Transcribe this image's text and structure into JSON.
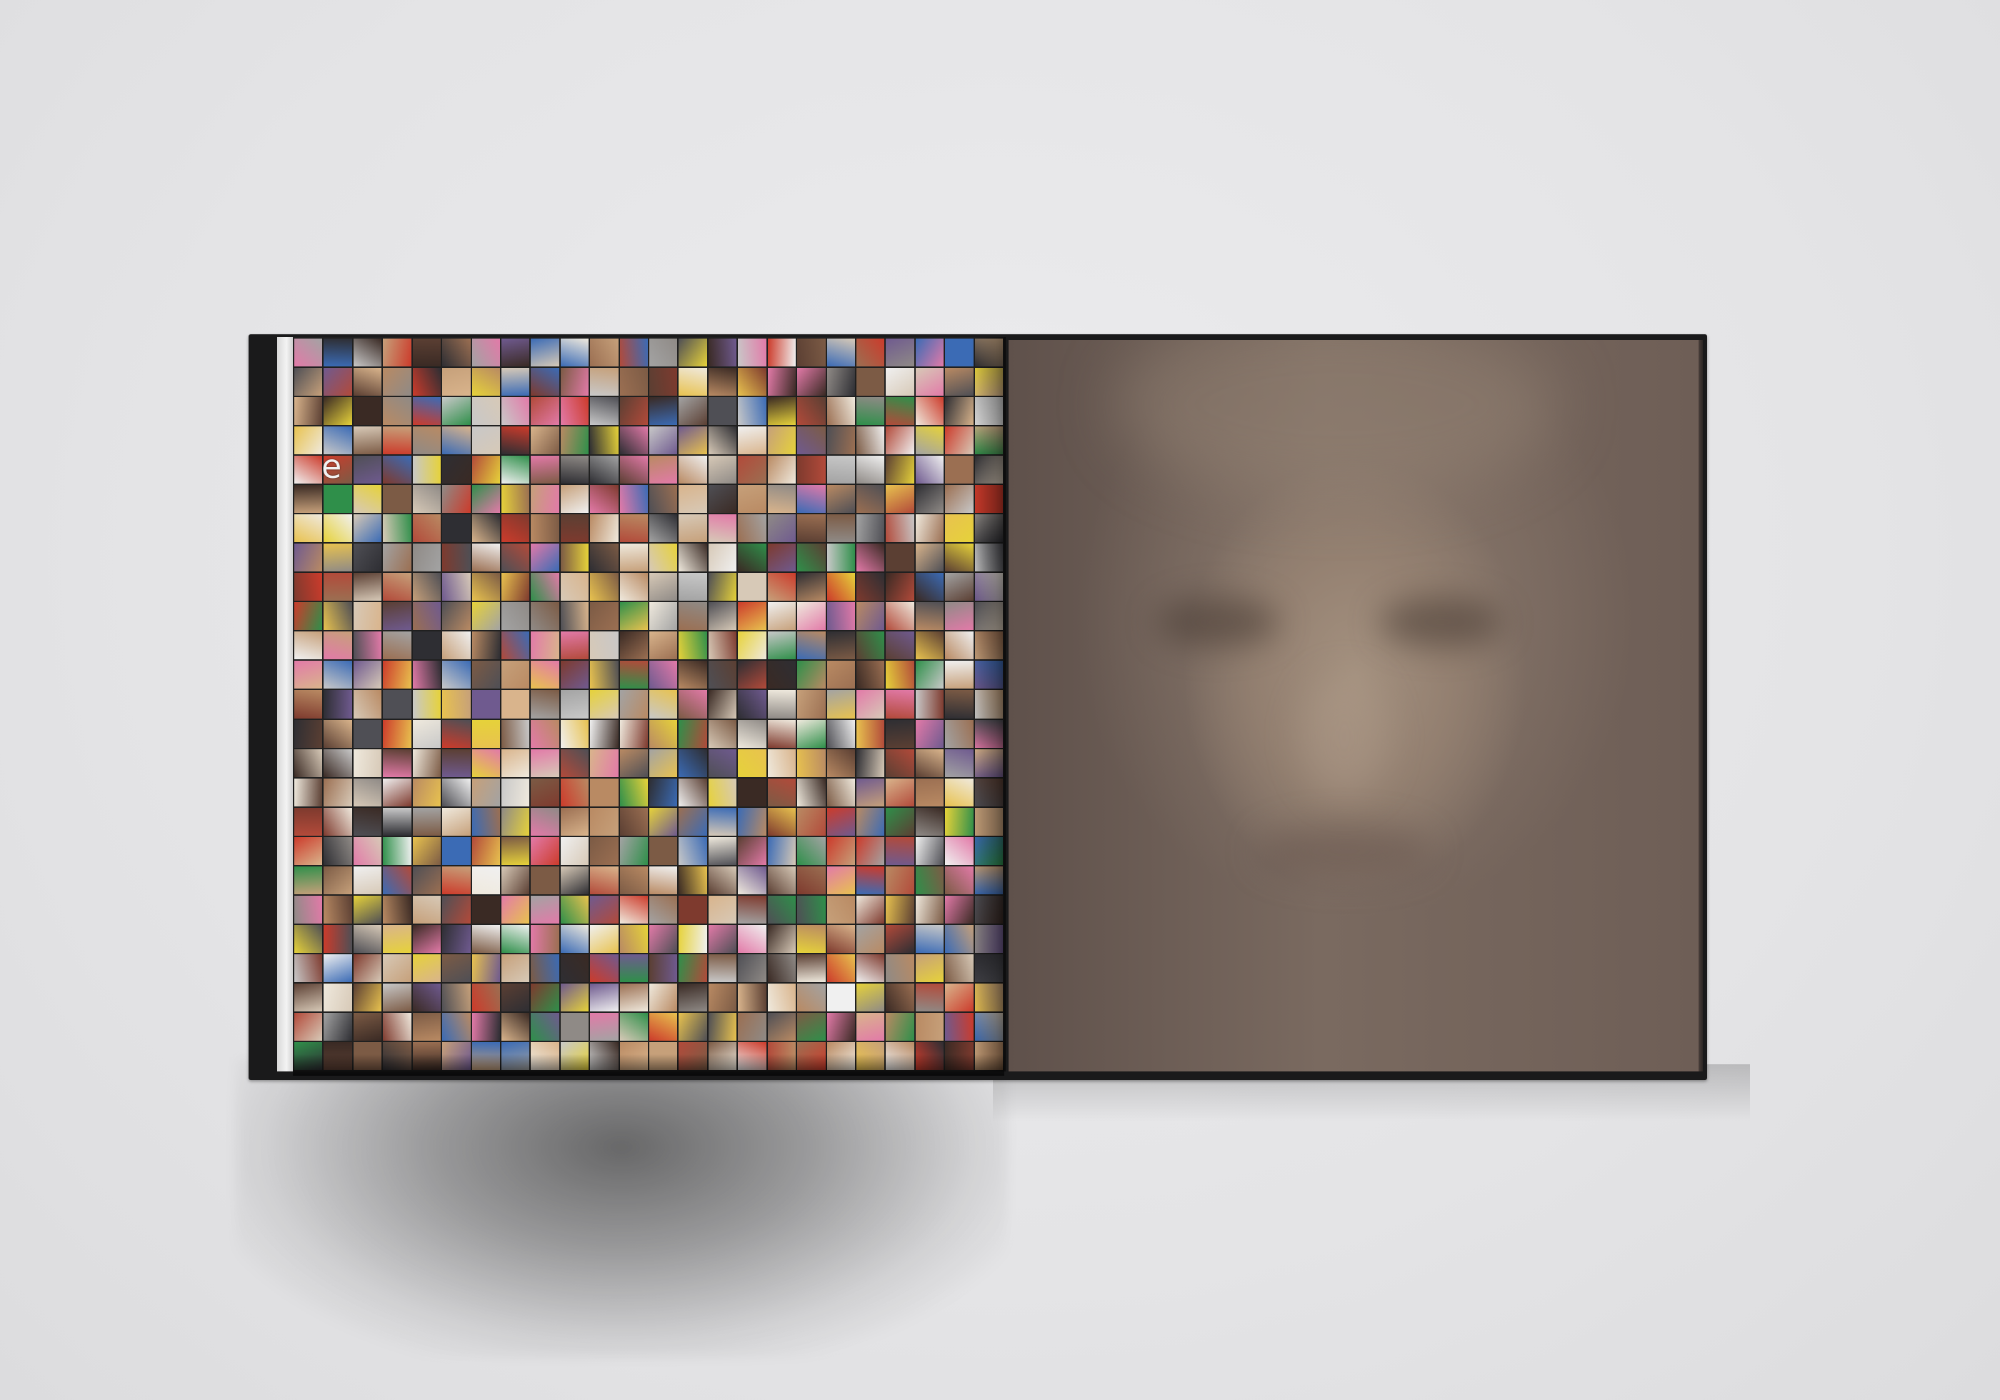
{
  "scene": {
    "left_page": {
      "mosaic_letter": "e",
      "mosaic_columns": 24,
      "mosaic_rows": 25,
      "tile_palette": [
        "#b98a63",
        "#3a2a24",
        "#d7c9b7",
        "#7c5b45",
        "#efe9dd",
        "#2e2e33",
        "#c6a07a",
        "#8f8a86",
        "#e6d23a",
        "#cc3b2b",
        "#3b6bb5",
        "#e27aa8",
        "#2f8f4a",
        "#a3a3a3",
        "#f0f0f0",
        "#5b3f33",
        "#9b6f52",
        "#d9b48c",
        "#4f4f55",
        "#e8c24f",
        "#7e3a2e",
        "#c8c8c8",
        "#6f5a8f",
        "#b24a3a"
      ]
    },
    "right_page": {
      "style": "blurred-portrait",
      "base_color": "#6a5a52"
    },
    "background_color": "#e6e6e8"
  }
}
